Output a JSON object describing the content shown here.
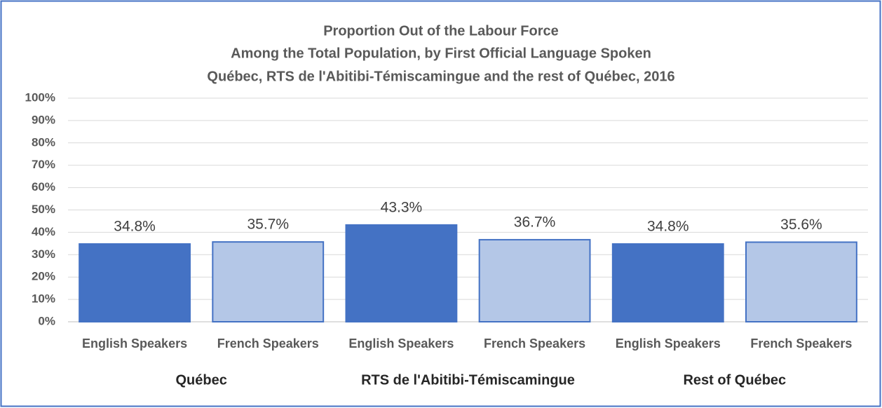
{
  "chart_data": {
    "type": "bar",
    "title": [
      "Proportion Out of the Labour Force",
      "Among the Total Population, by First Official Language Spoken",
      "Québec, RTS de l'Abitibi-Témiscamingue and the rest of Québec, 2016"
    ],
    "categories": [
      "English Speakers",
      "French Speakers",
      "English Speakers",
      "French Speakers",
      "English Speakers",
      "French Speakers"
    ],
    "groups": [
      "Québec",
      "RTS de l'Abitibi-Témiscamingue",
      "Rest of Québec"
    ],
    "values": [
      34.8,
      35.7,
      43.3,
      36.7,
      34.8,
      35.6
    ],
    "value_labels": [
      "34.8%",
      "35.7%",
      "43.3%",
      "36.7%",
      "34.8%",
      "35.6%"
    ],
    "colors": [
      "#4472c4",
      "#b4c7e7",
      "#4472c4",
      "#b4c7e7",
      "#4472c4",
      "#b4c7e7"
    ],
    "ylim": [
      0,
      100
    ],
    "yticks": [
      {
        "value": 0,
        "label": "0%"
      },
      {
        "value": 10,
        "label": "10%"
      },
      {
        "value": 20,
        "label": "20%"
      },
      {
        "value": 30,
        "label": "30%"
      },
      {
        "value": 40,
        "label": "40%"
      },
      {
        "value": 50,
        "label": "50%"
      },
      {
        "value": 60,
        "label": "60%"
      },
      {
        "value": 70,
        "label": "70%"
      },
      {
        "value": 80,
        "label": "80%"
      },
      {
        "value": 90,
        "label": "90%"
      },
      {
        "value": 100,
        "label": "100%"
      }
    ],
    "grid": true
  }
}
